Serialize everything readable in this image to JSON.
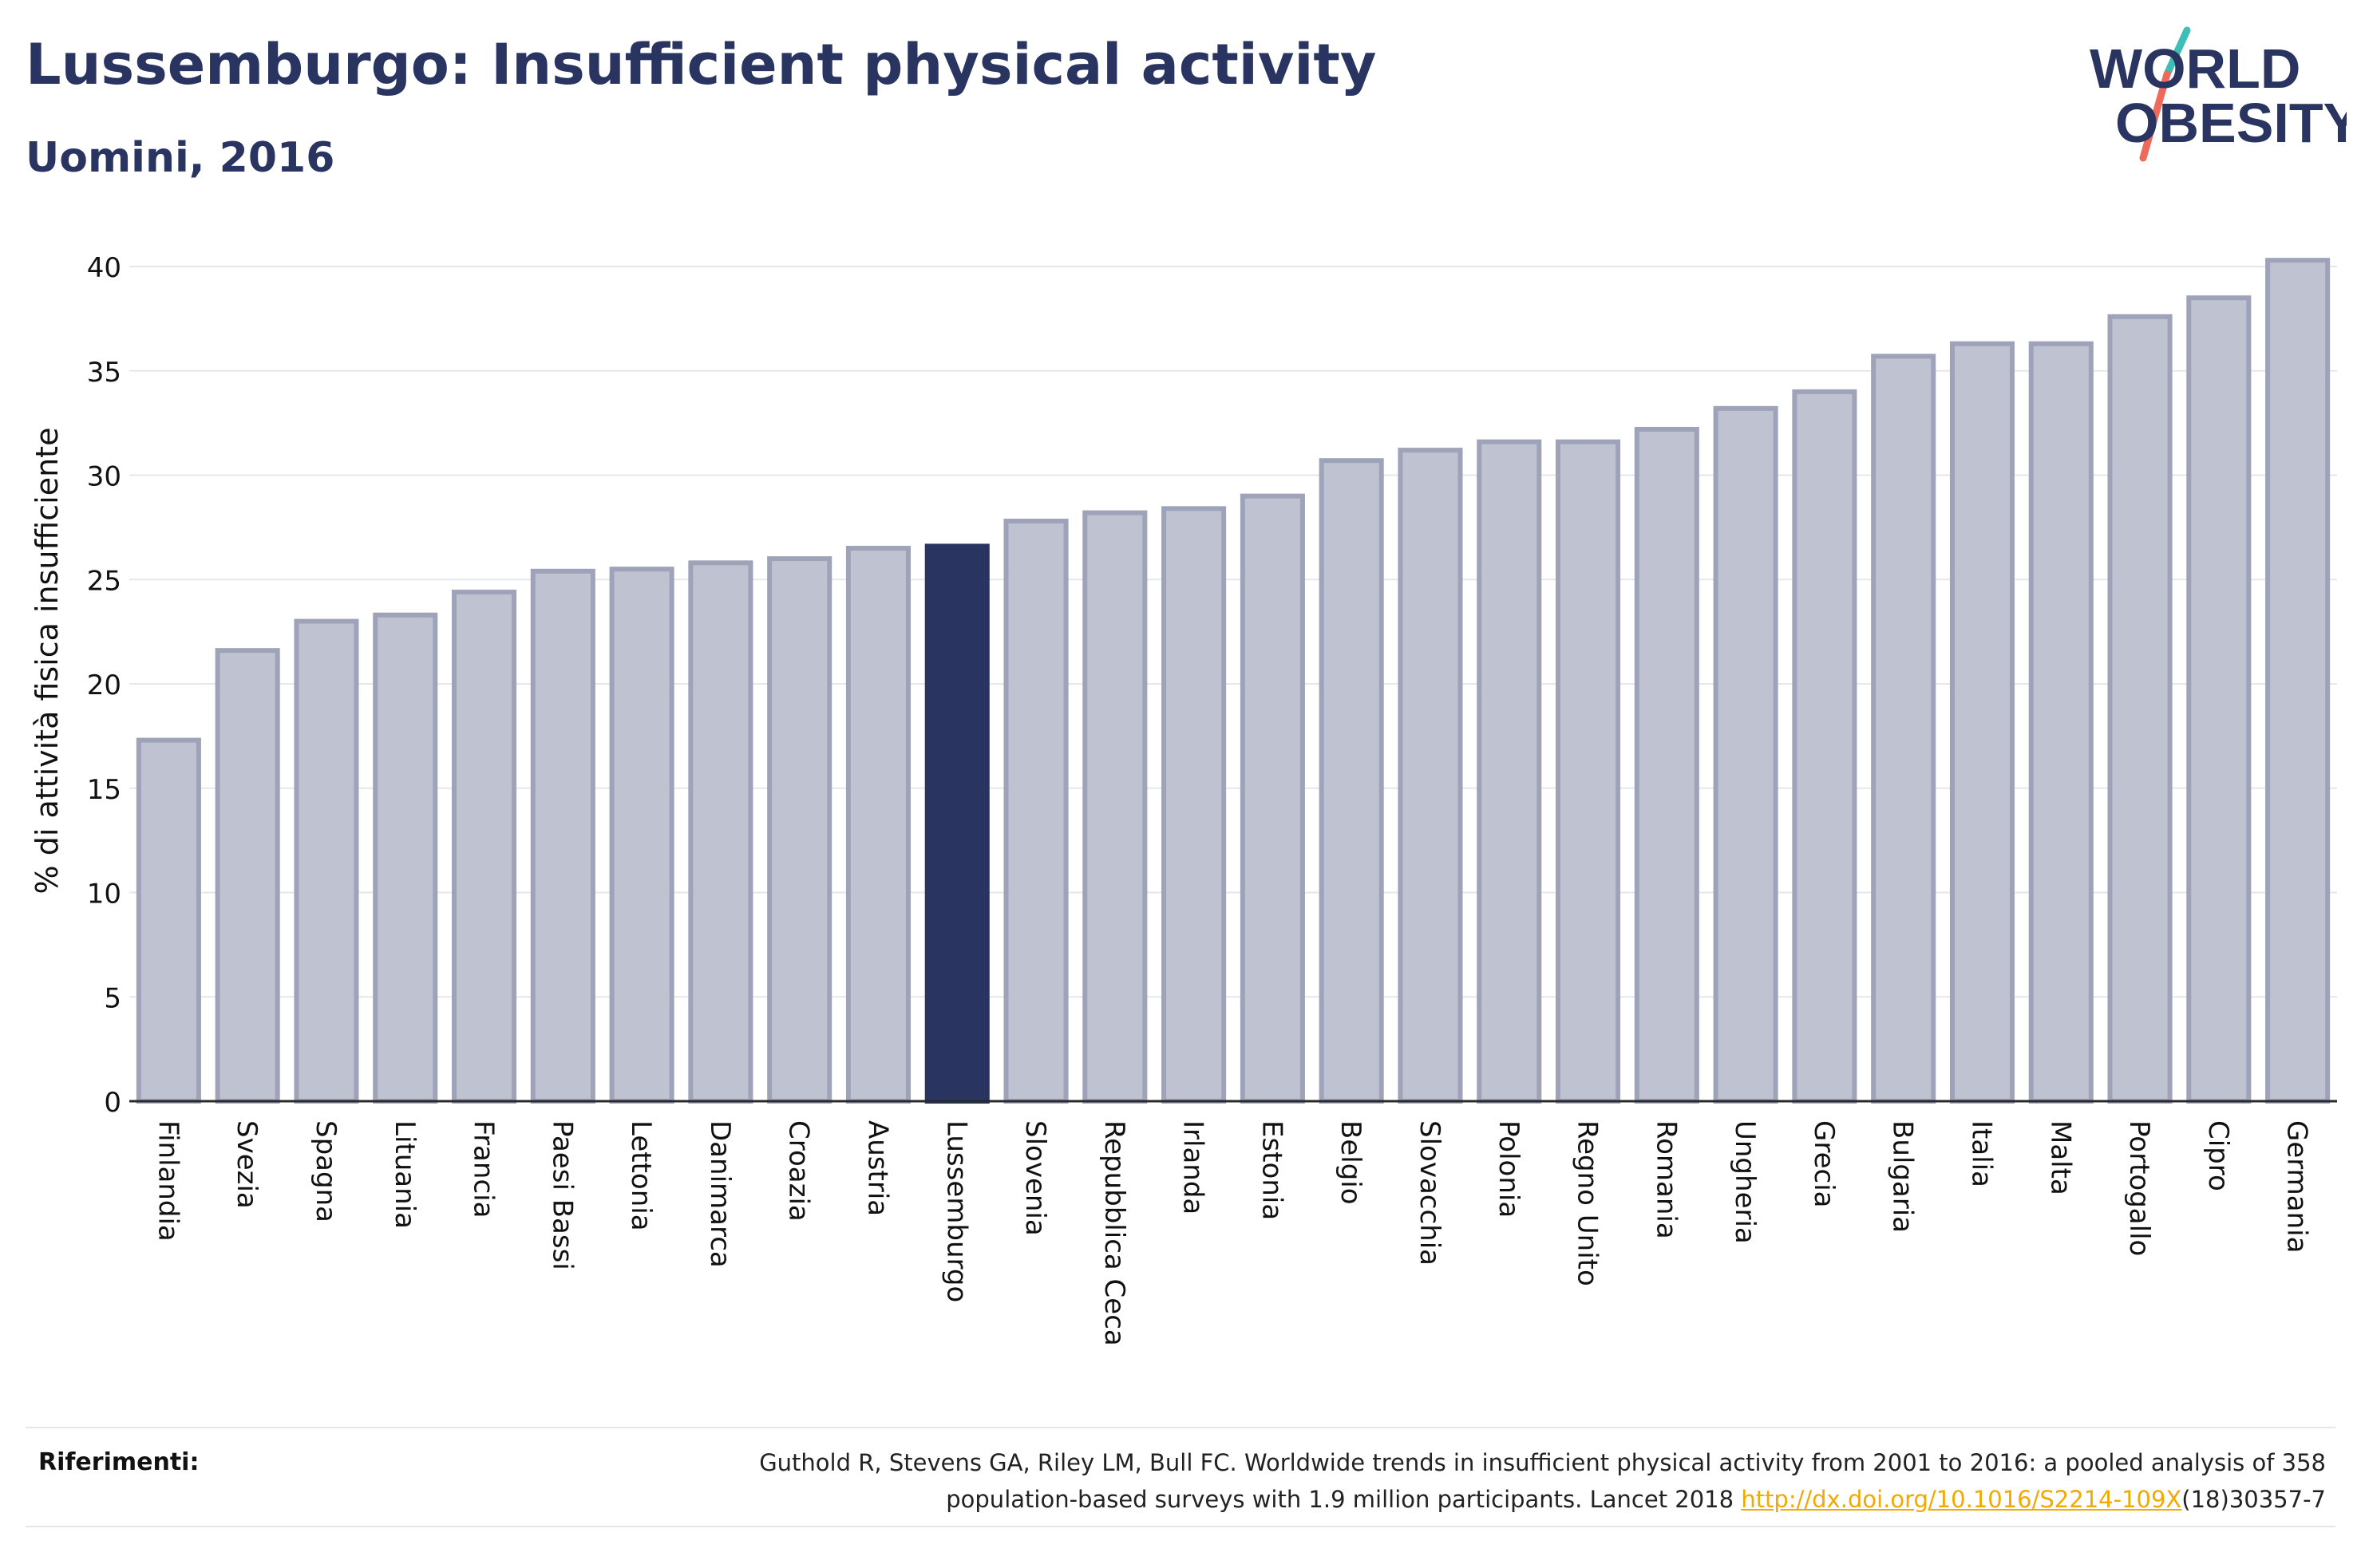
{
  "header": {
    "title": "Lussemburgo: Insufficient physical activity",
    "subtitle": "Uomini, 2016"
  },
  "logo": {
    "line1": "WORLD",
    "line2": "OBESITY",
    "colors": {
      "text": "#2a3460",
      "slash_top": "#3dbfb8",
      "slash_bottom": "#ee6a5a"
    }
  },
  "chart_data": {
    "type": "bar",
    "ylabel": "% di attività fisica insufficiente",
    "ylim": [
      0,
      40
    ],
    "yticks": [
      0,
      5,
      10,
      15,
      20,
      25,
      30,
      35,
      40
    ],
    "grid": true,
    "highlight": "Lussemburgo",
    "colors": {
      "bar": "#bfc2d0",
      "bar_border": "#9ea3ba",
      "highlight": "#2a3460"
    },
    "categories": [
      "Finlandia",
      "Svezia",
      "Spagna",
      "Lituania",
      "Francia",
      "Paesi Bassi",
      "Lettonia",
      "Danimarca",
      "Croazia",
      "Austria",
      "Lussemburgo",
      "Slovenia",
      "Repubblica Ceca",
      "Irlanda",
      "Estonia",
      "Belgio",
      "Slovacchia",
      "Polonia",
      "Regno Unito",
      "Romania",
      "Ungheria",
      "Grecia",
      "Bulgaria",
      "Italia",
      "Malta",
      "Portogallo",
      "Cipro",
      "Germania"
    ],
    "values": [
      17.3,
      21.6,
      23.0,
      23.3,
      24.4,
      25.4,
      25.5,
      25.8,
      26.0,
      26.5,
      26.6,
      27.8,
      28.2,
      28.4,
      29.0,
      30.7,
      31.2,
      31.6,
      31.6,
      32.2,
      33.2,
      34.0,
      35.7,
      36.3,
      36.3,
      37.6,
      38.5,
      40.3
    ]
  },
  "references": {
    "label": "Riferimenti:",
    "text_line1": "Guthold R, Stevens GA, Riley LM, Bull FC. Worldwide trends in insufficient physical activity from 2001 to 2016: a pooled analysis of 358",
    "text_line2_before": "population-based surveys with 1.9 million participants. Lancet 2018 ",
    "link": "http://dx.doi.org/10.1016/S2214-109X",
    "text_line2_after": "(18)30357-7"
  }
}
